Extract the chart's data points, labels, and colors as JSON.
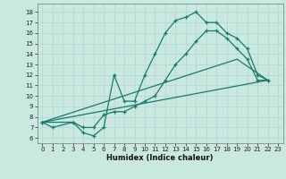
{
  "xlabel": "Humidex (Indice chaleur)",
  "bg_color": "#c8e8e0",
  "line_color": "#1a7a6e",
  "grid_color": "#b0d4cc",
  "xlim": [
    -0.5,
    23.5
  ],
  "ylim": [
    5.5,
    18.8
  ],
  "xticks": [
    0,
    1,
    2,
    3,
    4,
    5,
    6,
    7,
    8,
    9,
    10,
    11,
    12,
    13,
    14,
    15,
    16,
    17,
    18,
    19,
    20,
    21,
    22,
    23
  ],
  "yticks": [
    6,
    7,
    8,
    9,
    10,
    11,
    12,
    13,
    14,
    15,
    16,
    17,
    18
  ],
  "line1_x": [
    0,
    1,
    3,
    4,
    5,
    6,
    7,
    8,
    9,
    10,
    11,
    12,
    13,
    14,
    15,
    16,
    17,
    18,
    19,
    20,
    21,
    22
  ],
  "line1_y": [
    7.5,
    7.0,
    7.5,
    6.5,
    6.2,
    7.0,
    12.0,
    9.5,
    9.5,
    12.0,
    14.0,
    16.0,
    17.2,
    17.5,
    18.0,
    17.0,
    17.0,
    16.0,
    15.5,
    14.5,
    12.0,
    11.5
  ],
  "line2_x": [
    0,
    3,
    4,
    5,
    6,
    7,
    8,
    9,
    10,
    11,
    12,
    13,
    14,
    15,
    16,
    17,
    18,
    19,
    20,
    21,
    22
  ],
  "line2_y": [
    7.5,
    7.5,
    7.0,
    7.0,
    8.2,
    8.5,
    8.5,
    9.0,
    9.5,
    10.0,
    11.5,
    13.0,
    14.0,
    15.2,
    16.2,
    16.2,
    15.5,
    14.5,
    13.5,
    11.5,
    11.5
  ],
  "line3_x": [
    0,
    22
  ],
  "line3_y": [
    7.5,
    11.5
  ],
  "line4_x": [
    0,
    19,
    22
  ],
  "line4_y": [
    7.5,
    13.5,
    11.5
  ]
}
